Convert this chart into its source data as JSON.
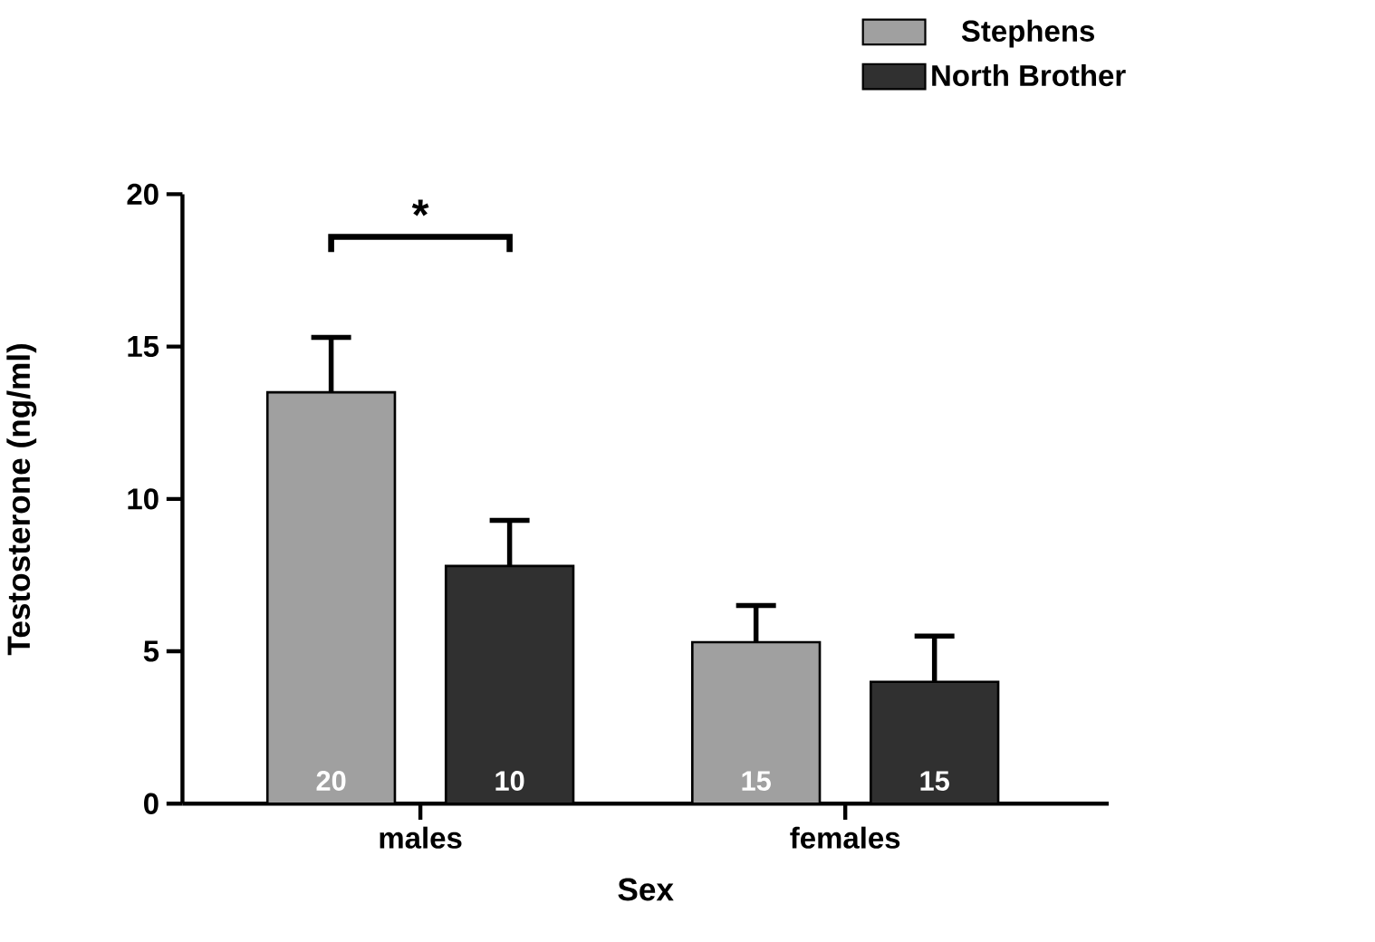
{
  "chart_data": {
    "type": "bar",
    "xlabel": "Sex",
    "ylabel": "Testosterone (ng/ml)",
    "categories": [
      "males",
      "females"
    ],
    "series": [
      {
        "name": "Stephens",
        "color": "#a0a0a0",
        "values": [
          13.5,
          5.3
        ],
        "errors": [
          1.8,
          1.2
        ]
      },
      {
        "name": "North Brother",
        "color": "#303030",
        "values": [
          7.8,
          4.0
        ],
        "errors": [
          1.5,
          1.5
        ]
      }
    ],
    "ylim": [
      0,
      20
    ],
    "yticks": [
      0,
      5,
      10,
      15,
      20
    ],
    "legend": "top right",
    "grid": false,
    "annotations": [
      "*",
      "20",
      "15",
      "10",
      "15"
    ]
  }
}
